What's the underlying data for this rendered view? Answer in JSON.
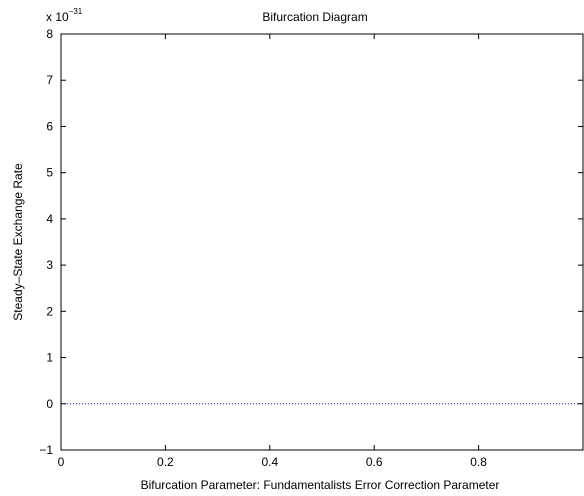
{
  "chart_data": {
    "type": "line",
    "title": "Bifurcation Diagram",
    "xlabel": "Bifurcation Parameter: Fundamentalists Error Correction Parameter",
    "ylabel": "Steady–State Exchange Rate",
    "y_multiplier_base": "x 10",
    "y_multiplier_exponent": "−31",
    "xlim": [
      0,
      1
    ],
    "ylim": [
      -1,
      8
    ],
    "x_ticks": [
      0,
      0.2,
      0.4,
      0.6,
      0.8
    ],
    "x_tick_labels": [
      "0",
      "0.2",
      "0.4",
      "0.6",
      "0.8"
    ],
    "y_ticks": [
      -1,
      0,
      1,
      2,
      3,
      4,
      5,
      6,
      7,
      8
    ],
    "y_tick_labels": [
      "−1",
      "0",
      "1",
      "2",
      "3",
      "4",
      "5",
      "6",
      "7",
      "8"
    ],
    "grid": false,
    "series": [
      {
        "x": [
          0,
          1
        ],
        "y": [
          0,
          0
        ],
        "color": "#0000cc",
        "style": "dotted"
      }
    ]
  }
}
